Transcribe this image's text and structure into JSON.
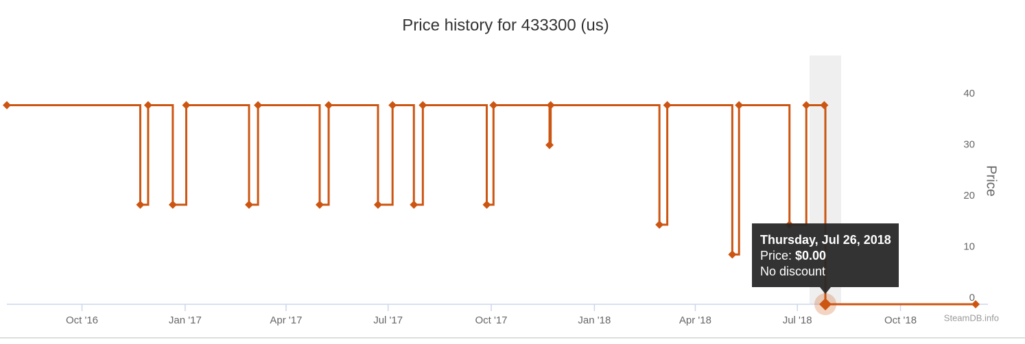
{
  "chart_data": {
    "type": "step-line",
    "title": "Price history for 433300 (us)",
    "y_axis_title": "Price",
    "credit": "SteamDB.info",
    "x": [
      "2016-07-26",
      "2016-11-22",
      "2016-11-29",
      "2016-12-21",
      "2017-01-02",
      "2017-02-27",
      "2017-03-07",
      "2017-05-01",
      "2017-05-09",
      "2017-06-22",
      "2017-07-05",
      "2017-07-24",
      "2017-08-01",
      "2017-09-27",
      "2017-10-03",
      "2017-11-22",
      "2017-11-23",
      "2018-02-28",
      "2018-03-07",
      "2018-05-04",
      "2018-05-10",
      "2018-06-24",
      "2018-07-09",
      "2018-07-25",
      "2018-07-26",
      "2018-12-07"
    ],
    "series": [
      {
        "name": "Price",
        "color": "#cc5511",
        "values": [
          38.99,
          19.49,
          38.99,
          19.49,
          38.99,
          19.49,
          38.99,
          19.49,
          38.99,
          19.49,
          38.99,
          19.49,
          38.99,
          19.49,
          38.99,
          31.19,
          38.99,
          15.59,
          38.99,
          9.74,
          38.99,
          15.59,
          38.99,
          38.99,
          0,
          0
        ]
      }
    ],
    "xlim": [
      "2016-07-26",
      "2018-12-18"
    ],
    "xticks": [
      {
        "value": "2016-10-01",
        "label": "Oct '16"
      },
      {
        "value": "2017-01-01",
        "label": "Jan '17"
      },
      {
        "value": "2017-04-01",
        "label": "Apr '17"
      },
      {
        "value": "2017-07-01",
        "label": "Jul '17"
      },
      {
        "value": "2017-10-01",
        "label": "Oct '17"
      },
      {
        "value": "2018-01-01",
        "label": "Jan '18"
      },
      {
        "value": "2018-04-01",
        "label": "Apr '18"
      },
      {
        "value": "2018-07-01",
        "label": "Jul '18"
      },
      {
        "value": "2018-10-01",
        "label": "Oct '18"
      }
    ],
    "ylim": [
      0,
      40
    ],
    "yticks": [
      0,
      10,
      20,
      30,
      40
    ],
    "grid": false,
    "tooltip": {
      "index": 24,
      "date": "Thursday, Jul 26, 2018",
      "price_label": "Price:",
      "price": "$0.00",
      "note": "No discount"
    }
  }
}
